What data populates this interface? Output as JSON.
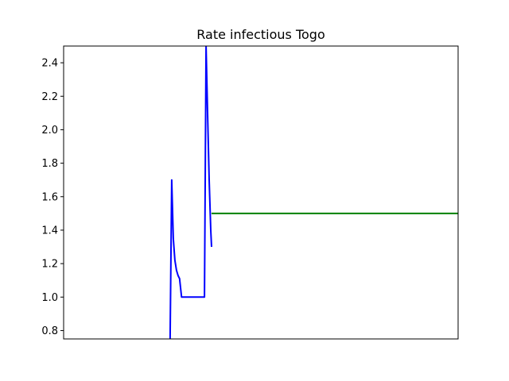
{
  "chart_data": {
    "type": "line",
    "title": "Rate infectious Togo",
    "xlabel": "",
    "ylabel": "",
    "xlim": [
      0,
      100
    ],
    "ylim": [
      0.75,
      2.5
    ],
    "grid": false,
    "yticks": [
      0.8,
      1.0,
      1.2,
      1.4,
      1.6,
      1.8,
      2.0,
      2.2,
      2.4
    ],
    "ytick_labels": [
      "0.8",
      "1.0",
      "1.2",
      "1.4",
      "1.6",
      "1.8",
      "2.0",
      "2.2",
      "2.4"
    ],
    "series": [
      {
        "color": "#0000ff",
        "x": [
          27.0,
          27.4,
          27.8,
          28.2,
          28.6,
          29.0,
          29.4,
          29.9,
          30.3,
          30.7,
          31.1,
          31.5,
          31.9,
          32.3,
          32.8,
          33.2,
          33.6,
          34.0,
          34.4,
          34.8,
          35.2,
          35.7,
          36.1,
          36.5,
          36.9,
          37.3,
          37.5
        ],
        "y": [
          0.75,
          1.7,
          1.35,
          1.22,
          1.16,
          1.13,
          1.11,
          1.0,
          1.0,
          1.0,
          1.0,
          1.0,
          1.0,
          1.0,
          1.0,
          1.0,
          1.0,
          1.0,
          1.0,
          1.0,
          1.0,
          1.0,
          2.5,
          2.1,
          1.7,
          1.4,
          1.3
        ]
      },
      {
        "color": "#008000",
        "x": [
          37.5,
          100.0
        ],
        "y": [
          1.5,
          1.5
        ]
      }
    ]
  }
}
